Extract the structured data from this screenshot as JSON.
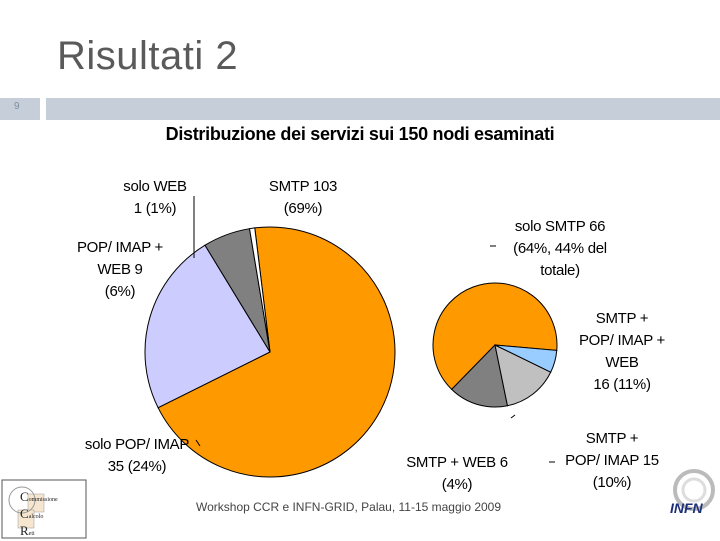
{
  "slide": {
    "title": "Risultati 2",
    "number": "9",
    "footer": "Workshop CCR e INFN-GRID, Palau, 11-15 maggio 2009"
  },
  "logos": {
    "left_letters": [
      "C",
      "C",
      "R"
    ],
    "left_words": [
      "ommissione",
      "alcolo",
      "eti"
    ],
    "right": "INFN"
  },
  "chart_data": {
    "type": "pie",
    "title": "Distribuzione dei servizi sui 150 nodi esaminati",
    "main_pie": {
      "slices": [
        {
          "name": "SMTP",
          "value": 103,
          "percent": 69,
          "color": "#ff9900",
          "label_lines": [
            "SMTP 103",
            "(69%)"
          ]
        },
        {
          "name": "solo POP/IMAP",
          "value": 35,
          "percent": 24,
          "color": "#ccccff",
          "label_lines": [
            "solo POP/ IMAP",
            "35  (24%)"
          ]
        },
        {
          "name": "POP/IMAP + WEB",
          "value": 9,
          "percent": 6,
          "color": "#808080",
          "label_lines": [
            "POP/ IMAP +",
            "WEB  9",
            "(6%)"
          ]
        },
        {
          "name": "solo WEB",
          "value": 1,
          "percent": 1,
          "color": "#ffffff",
          "label_lines": [
            "solo WEB",
            "1 (1%)"
          ]
        }
      ]
    },
    "breakdown_pie": {
      "slices": [
        {
          "name": "solo SMTP",
          "value": 66,
          "percent": 64,
          "color": "#ff9900",
          "label_lines": [
            "solo SMTP  66",
            "(64%, 44% del",
            "totale)"
          ]
        },
        {
          "name": "SMTP + POP/IMAP + WEB",
          "value": 16,
          "percent": 11,
          "color": "#808080",
          "label_lines": [
            "SMTP +",
            "POP/ IMAP +",
            "WEB",
            "16 (11%)"
          ]
        },
        {
          "name": "SMTP + POP/IMAP",
          "value": 15,
          "percent": 10,
          "color": "#c0c0c0",
          "label_lines": [
            "SMTP +",
            "POP/ IMAP   15",
            "(10%)"
          ]
        },
        {
          "name": "SMTP + WEB",
          "value": 6,
          "percent": 4,
          "color": "#99ccff",
          "label_lines": [
            "SMTP +  WEB  6",
            "(4%)"
          ]
        }
      ]
    }
  }
}
